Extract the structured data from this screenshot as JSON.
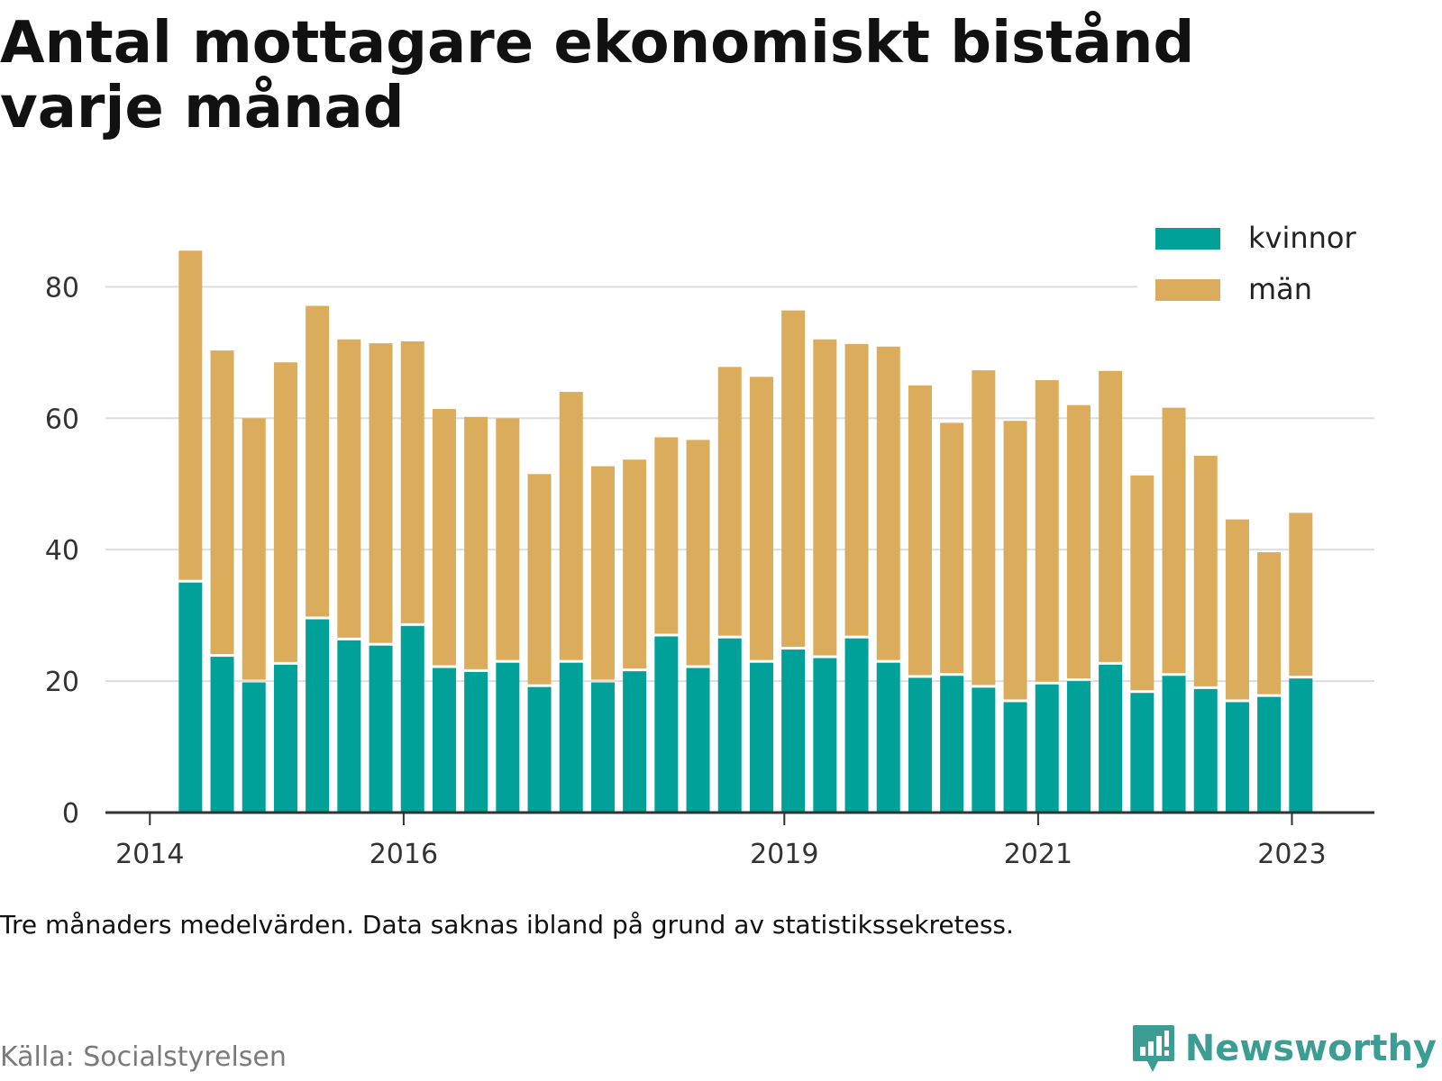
{
  "title": "Antal mottagare ekonomiskt bistånd varje månad",
  "note": "Tre månaders medelvärden. Data saknas ibland på grund av statistikssekretess.",
  "source": "Källa: Socialstyrelsen",
  "brand": "Newsworthy",
  "colors": {
    "kvinnor": "#00a199",
    "man": "#dbac5b",
    "grid": "#dddddd",
    "axis": "#333333",
    "brand": "#3b9d94"
  },
  "chart_data": {
    "type": "bar",
    "stacked": true,
    "legend_position": "top-right",
    "grid": true,
    "ylim": [
      0,
      88
    ],
    "yticks": [
      0,
      20,
      40,
      60,
      80
    ],
    "xlim": [
      2013.65,
      2023.65
    ],
    "xticks": [
      {
        "value": 2014,
        "label": "2014"
      },
      {
        "value": 2016,
        "label": "2016"
      },
      {
        "value": 2019,
        "label": "2019"
      },
      {
        "value": 2021,
        "label": "2021"
      },
      {
        "value": 2023,
        "label": "2023"
      }
    ],
    "x": [
      2014.32,
      2014.57,
      2014.82,
      2015.07,
      2015.32,
      2015.57,
      2015.82,
      2016.07,
      2016.32,
      2016.57,
      2016.82,
      2017.07,
      2017.32,
      2017.57,
      2017.82,
      2018.07,
      2018.32,
      2018.57,
      2018.82,
      2019.07,
      2019.32,
      2019.57,
      2019.82,
      2020.07,
      2020.32,
      2020.57,
      2020.82,
      2021.07,
      2021.32,
      2021.57,
      2021.82,
      2022.07,
      2022.32,
      2022.57,
      2022.82,
      2023.07
    ],
    "series": [
      {
        "name": "kvinnor",
        "values": [
          35,
          23.7,
          19.8,
          22.5,
          29.4,
          26.2,
          25.4,
          28.4,
          22,
          21.4,
          22.8,
          19.1,
          22.8,
          19.8,
          21.5,
          26.8,
          22,
          26.5,
          22.8,
          24.8,
          23.5,
          26.5,
          22.8,
          20.5,
          20.8,
          19,
          16.8,
          19.5,
          20,
          22.5,
          18.2,
          20.8,
          18.8,
          16.8,
          17.6,
          20.4
        ]
      },
      {
        "name": "män",
        "values": [
          50.5,
          46.6,
          40.2,
          46,
          47.7,
          45.8,
          46,
          43.3,
          39.4,
          38.8,
          37.2,
          32.4,
          41.2,
          32.9,
          32.2,
          30.3,
          34.7,
          41.3,
          43.5,
          51.6,
          48.5,
          44.8,
          48.1,
          44.5,
          38.5,
          48.3,
          42.8,
          46.3,
          42,
          44.7,
          33.1,
          40.8,
          35.5,
          27.8,
          22,
          25.2
        ]
      }
    ]
  }
}
